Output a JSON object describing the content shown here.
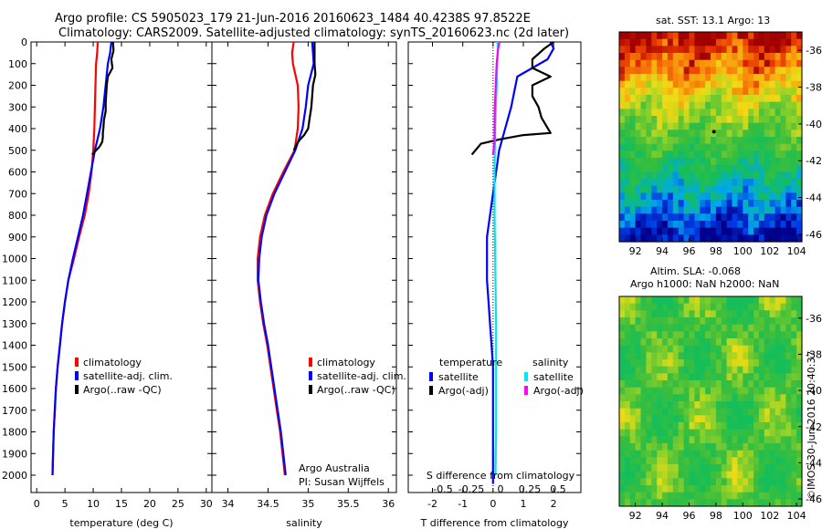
{
  "header": {
    "line1": "Argo profile: CS 5905023_179 21-Jun-2016 20160623_1484 40.4238S 97.8522E",
    "line2": "Climatology: CARS2009. Satellite-adjusted climatology: synTS_20160623.nc (2d later)"
  },
  "colors": {
    "climatology": "#ff0000",
    "satellite": "#0000ff",
    "argo": "#000000",
    "sat_salinity": "#00e5ee",
    "argo_salinity": "#ff00ff"
  },
  "chart_data": [
    {
      "type": "line",
      "panel": "temperature",
      "xlabel": "temperature (deg C)",
      "xlim": [
        -1,
        31
      ],
      "xticks": [
        0,
        5,
        10,
        15,
        20,
        25,
        30
      ],
      "ylim": [
        2080,
        0
      ],
      "yticks": [
        0,
        100,
        200,
        300,
        400,
        500,
        600,
        700,
        800,
        900,
        1000,
        1100,
        1200,
        1300,
        1400,
        1500,
        1600,
        1700,
        1800,
        1900,
        2000
      ],
      "legend": [
        "climatology",
        "satellite-adj. clim.",
        "Argo(..raw -QC)"
      ],
      "legend_position": "lower-right",
      "series": [
        {
          "name": "climatology",
          "color": "#ff0000",
          "x": [
            10.8,
            10.7,
            10.5,
            10.4,
            10.3,
            10.2,
            10.0,
            9.7,
            9.2,
            8.5,
            7.5,
            6.6,
            5.6,
            5.0,
            4.5,
            4.1,
            3.7,
            3.4,
            3.2,
            3.0,
            2.9,
            2.8
          ],
          "y": [
            0,
            50,
            100,
            200,
            300,
            400,
            500,
            600,
            700,
            800,
            900,
            1000,
            1100,
            1200,
            1300,
            1400,
            1500,
            1600,
            1700,
            1800,
            1900,
            2000
          ]
        },
        {
          "name": "satellite-adj. clim.",
          "color": "#0000ff",
          "x": [
            13.2,
            13.0,
            12.6,
            12.2,
            11.8,
            11.2,
            10.3,
            9.6,
            8.9,
            8.2,
            7.3,
            6.4,
            5.6,
            5.0,
            4.5,
            4.1,
            3.7,
            3.4,
            3.2,
            3.0,
            2.9,
            2.8
          ],
          "y": [
            0,
            50,
            100,
            200,
            300,
            400,
            500,
            600,
            700,
            800,
            900,
            1000,
            1100,
            1200,
            1300,
            1400,
            1500,
            1600,
            1700,
            1800,
            1900,
            2000
          ]
        },
        {
          "name": "Argo(..raw -QC)",
          "color": "#000000",
          "x": [
            13.5,
            13.6,
            13.2,
            13.4,
            12.6,
            12.4,
            12.3,
            12.2,
            12.2,
            11.9,
            11.8,
            11.7,
            11.7,
            11.6,
            11.2,
            10.9,
            10.5,
            10.2,
            9.8
          ],
          "y": [
            0,
            40,
            80,
            120,
            160,
            200,
            240,
            280,
            320,
            360,
            400,
            420,
            440,
            460,
            480,
            490,
            500,
            510,
            520
          ]
        }
      ]
    },
    {
      "type": "line",
      "panel": "salinity",
      "xlabel": "salinity",
      "xlim": [
        33.8,
        36.1
      ],
      "xticks": [
        34,
        34.5,
        35,
        35.5,
        36
      ],
      "ylim": [
        2080,
        0
      ],
      "legend": [
        "climatology",
        "satellite-adj. clim.",
        "Argo(..raw -QC)"
      ],
      "legend_position": "lower-right",
      "annotation": [
        "Argo Australia",
        "PI: Susan Wijffels"
      ],
      "series": [
        {
          "name": "climatology",
          "color": "#ff0000",
          "x": [
            34.82,
            34.8,
            34.81,
            34.87,
            34.88,
            34.87,
            34.83,
            34.69,
            34.56,
            34.46,
            34.4,
            34.37,
            34.37,
            34.4,
            34.44,
            34.49,
            34.53,
            34.57,
            34.61,
            34.65,
            34.68,
            34.71
          ],
          "y": [
            0,
            50,
            100,
            200,
            300,
            400,
            500,
            600,
            700,
            800,
            900,
            1000,
            1100,
            1200,
            1300,
            1400,
            1500,
            1600,
            1700,
            1800,
            1900,
            2000
          ]
        },
        {
          "name": "satellite-adj. clim.",
          "color": "#0000ff",
          "x": [
            35.05,
            35.06,
            35.07,
            35.0,
            34.97,
            34.93,
            34.84,
            34.71,
            34.58,
            34.48,
            34.42,
            34.39,
            34.38,
            34.41,
            34.45,
            34.5,
            34.54,
            34.58,
            34.62,
            34.66,
            34.69,
            34.72
          ],
          "y": [
            0,
            50,
            100,
            200,
            300,
            400,
            500,
            600,
            700,
            800,
            900,
            1000,
            1100,
            1200,
            1300,
            1400,
            1500,
            1600,
            1700,
            1800,
            1900,
            2000
          ]
        },
        {
          "name": "Argo(..raw -QC)",
          "color": "#000000",
          "x": [
            35.08,
            35.08,
            35.08,
            35.09,
            35.06,
            35.05,
            35.04,
            35.02,
            35.0,
            34.95,
            34.9,
            34.86,
            34.82
          ],
          "y": [
            0,
            50,
            100,
            150,
            200,
            250,
            300,
            350,
            400,
            430,
            450,
            470,
            500
          ]
        }
      ]
    },
    {
      "type": "line",
      "panel": "difference",
      "xlabel": "T difference from climatology",
      "top_axis_label": "S difference from climatology",
      "xlim": [
        -2.8,
        2.9
      ],
      "xticks": [
        -2,
        -1,
        0,
        1,
        2
      ],
      "top_ticks": [
        "-0.5",
        "-0.25",
        "0",
        "0.25",
        "0.5"
      ],
      "ylim": [
        2080,
        0
      ],
      "legend": {
        "temperature_heading": "temperature",
        "salinity_heading": "salinity",
        "items": [
          "satellite",
          "Argo(-adj)",
          "satellite",
          "Argo(-adj)"
        ]
      },
      "series": [
        {
          "name": "temperature satellite",
          "color": "#0000ff",
          "x": [
            1.9,
            2.0,
            1.8,
            0.8,
            0.6,
            0.4,
            0.2,
            0.1,
            0.0,
            -0.1,
            -0.2,
            -0.2,
            -0.2,
            -0.15,
            -0.1,
            -0.05,
            0.0,
            0.0,
            0.0,
            0.0,
            0.0,
            0.0,
            0.0
          ],
          "y": [
            0,
            30,
            80,
            160,
            300,
            400,
            500,
            600,
            700,
            800,
            900,
            1000,
            1100,
            1200,
            1300,
            1400,
            1500,
            1600,
            1700,
            1800,
            1900,
            2000,
            2040
          ]
        },
        {
          "name": "temperature Argo(-adj)",
          "color": "#000000",
          "x": [
            2.0,
            1.7,
            1.3,
            1.3,
            1.9,
            1.3,
            1.3,
            1.5,
            1.6,
            1.9,
            1.0,
            0.2,
            -0.4,
            -0.7
          ],
          "y": [
            0,
            30,
            80,
            120,
            160,
            200,
            250,
            300,
            350,
            420,
            430,
            450,
            470,
            520
          ]
        },
        {
          "name": "salinity satellite",
          "color": "#00e5ee",
          "x": [
            0.15,
            0.16,
            0.13,
            0.12,
            0.09,
            0.07,
            0.06,
            0.05,
            0.05,
            0.05,
            0.06,
            0.07,
            0.08,
            0.09,
            0.1,
            0.1,
            0.1,
            0.1,
            0.1,
            0.1,
            0.09,
            0.08
          ],
          "y": [
            0,
            50,
            100,
            200,
            300,
            400,
            500,
            600,
            700,
            800,
            900,
            1000,
            1100,
            1200,
            1300,
            1400,
            1500,
            1600,
            1700,
            1800,
            1900,
            2000
          ]
        },
        {
          "name": "salinity Argo(-adj)",
          "color": "#ff00ff",
          "x": [
            0.21,
            0.16,
            0.12,
            0.09,
            0.06,
            0.05,
            0.05,
            0.0
          ],
          "y": [
            0,
            40,
            100,
            200,
            300,
            400,
            460,
            520
          ]
        }
      ]
    },
    {
      "type": "heatmap",
      "panel": "sst",
      "title": "sat. SST: 13.1  Argo: 13",
      "xticks": [
        92,
        94,
        96,
        98,
        100,
        102,
        104
      ],
      "yticks": [
        -36,
        -38,
        -40,
        -42,
        -44,
        -46
      ],
      "xlim": [
        90.8,
        104.4
      ],
      "ylim": [
        -46.4,
        -35.0
      ],
      "marker": {
        "lon": 97.85,
        "lat": -40.42
      }
    },
    {
      "type": "heatmap",
      "panel": "sla",
      "title_line1": "Altim. SLA: -0.068",
      "title_line2": "Argo h1000: NaN h2000: NaN",
      "xticks": [
        92,
        94,
        96,
        98,
        100,
        102,
        104
      ],
      "yticks": [
        -36,
        -38,
        -40,
        -42,
        -44,
        -46
      ],
      "xlim": [
        90.8,
        104.4
      ],
      "ylim": [
        -46.4,
        -34.8
      ],
      "side_label": "©IMOS 30-Jun-2016 20:40:37"
    }
  ]
}
